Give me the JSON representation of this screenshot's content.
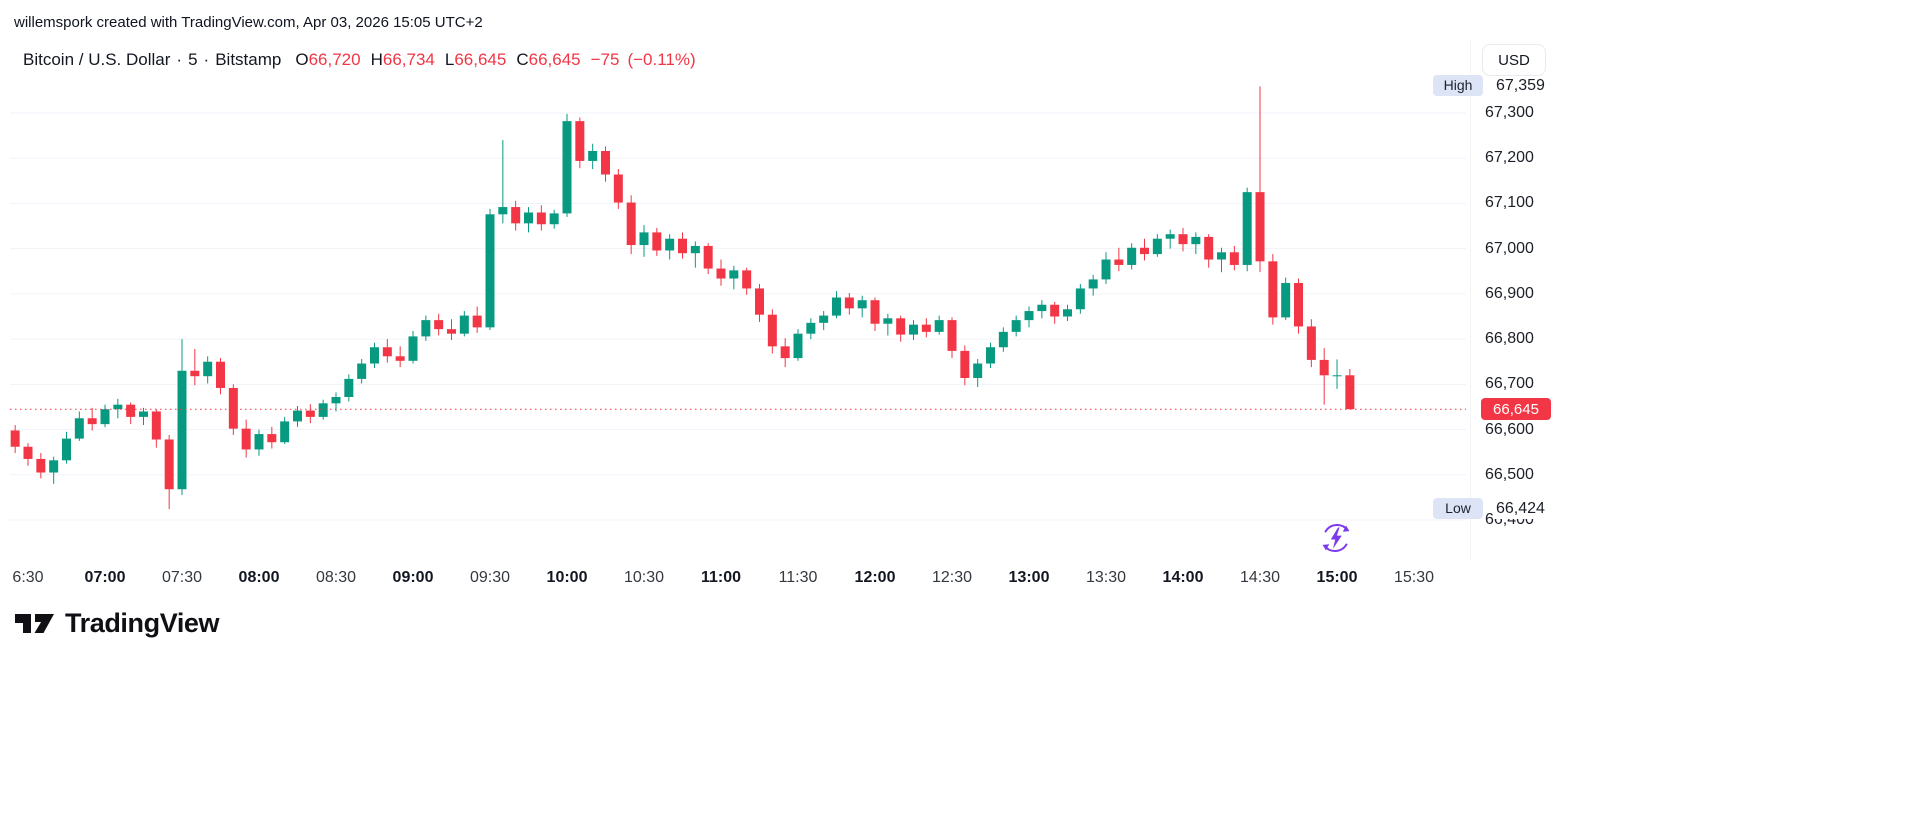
{
  "attribution": "willemspork created with TradingView.com, Apr 03, 2026 15:05 UTC+2",
  "header": {
    "symbol": "Bitcoin / U.S. Dollar",
    "separator": "·",
    "interval": "5",
    "exchange": "Bitstamp",
    "ohlc": {
      "o_label": "O",
      "o": "66,720",
      "h_label": "H",
      "h": "66,734",
      "l_label": "L",
      "l": "66,645",
      "c_label": "C",
      "c": "66,645",
      "change": "−75",
      "change_pct": "(−0.11%)"
    }
  },
  "price_scale": {
    "currency": "USD",
    "high_label": "High",
    "high_value": "67,359",
    "low_label": "Low",
    "low_value": "66,424",
    "last_price": "66,645"
  },
  "footer": {
    "brand": "TradingView"
  },
  "colors": {
    "up": "#089981",
    "down": "#f23645",
    "last_badge": "#f23645",
    "hl_badge_bg": "#dce4f5",
    "flash": "#7c3aed",
    "grid": "#f0f3fa"
  },
  "chart_data": {
    "type": "candlestick",
    "title": "Bitcoin / U.S. Dollar · 5 · Bitstamp",
    "interval_minutes": 5,
    "last_price": 66645,
    "session_high": 67359,
    "session_low": 66424,
    "price_axis": {
      "ticks": [
        67300,
        67200,
        67100,
        67000,
        66900,
        66800,
        66700,
        66600,
        66500,
        66400
      ],
      "ylim": [
        66380,
        67390
      ]
    },
    "time_axis_labels": [
      {
        "text": "6:30",
        "bold": false
      },
      {
        "text": "07:00",
        "bold": true
      },
      {
        "text": "07:30",
        "bold": false
      },
      {
        "text": "08:00",
        "bold": true
      },
      {
        "text": "08:30",
        "bold": false
      },
      {
        "text": "09:00",
        "bold": true
      },
      {
        "text": "09:30",
        "bold": false
      },
      {
        "text": "10:00",
        "bold": true
      },
      {
        "text": "10:30",
        "bold": false
      },
      {
        "text": "11:00",
        "bold": true
      },
      {
        "text": "11:30",
        "bold": false
      },
      {
        "text": "12:00",
        "bold": true
      },
      {
        "text": "12:30",
        "bold": false
      },
      {
        "text": "13:00",
        "bold": true
      },
      {
        "text": "13:30",
        "bold": false
      },
      {
        "text": "14:00",
        "bold": true
      },
      {
        "text": "14:30",
        "bold": false
      },
      {
        "text": "15:00",
        "bold": true
      },
      {
        "text": "15:30",
        "bold": false
      }
    ],
    "candles": [
      [
        "06:25",
        66598,
        66610,
        66548,
        66562
      ],
      [
        "06:30",
        66562,
        66570,
        66520,
        66535
      ],
      [
        "06:35",
        66535,
        66548,
        66492,
        66505
      ],
      [
        "06:40",
        66505,
        66540,
        66480,
        66532
      ],
      [
        "06:45",
        66532,
        66595,
        66525,
        66580
      ],
      [
        "06:50",
        66580,
        66640,
        66575,
        66625
      ],
      [
        "06:55",
        66625,
        66648,
        66598,
        66612
      ],
      [
        "07:00",
        66612,
        66655,
        66605,
        66645
      ],
      [
        "07:05",
        66645,
        66668,
        66625,
        66655
      ],
      [
        "07:10",
        66655,
        66660,
        66612,
        66628
      ],
      [
        "07:15",
        66628,
        66648,
        66610,
        66640
      ],
      [
        "07:20",
        66640,
        66645,
        66560,
        66578
      ],
      [
        "07:25",
        66578,
        66588,
        66424,
        66468
      ],
      [
        "07:30",
        66468,
        66800,
        66455,
        66730
      ],
      [
        "07:35",
        66730,
        66778,
        66698,
        66718
      ],
      [
        "07:40",
        66718,
        66762,
        66702,
        66750
      ],
      [
        "07:45",
        66750,
        66758,
        66678,
        66692
      ],
      [
        "07:50",
        66692,
        66700,
        66588,
        66602
      ],
      [
        "07:55",
        66602,
        66622,
        66538,
        66556
      ],
      [
        "08:00",
        66556,
        66600,
        66542,
        66590
      ],
      [
        "08:05",
        66590,
        66606,
        66558,
        66572
      ],
      [
        "08:10",
        66572,
        66628,
        66568,
        66618
      ],
      [
        "08:15",
        66618,
        66652,
        66606,
        66642
      ],
      [
        "08:20",
        66642,
        66656,
        66614,
        66628
      ],
      [
        "08:25",
        66628,
        66666,
        66622,
        66658
      ],
      [
        "08:30",
        66658,
        66682,
        66640,
        66672
      ],
      [
        "08:35",
        66672,
        66722,
        66662,
        66712
      ],
      [
        "08:40",
        66712,
        66756,
        66702,
        66746
      ],
      [
        "08:45",
        66746,
        66792,
        66736,
        66782
      ],
      [
        "08:50",
        66782,
        66800,
        66748,
        66762
      ],
      [
        "08:55",
        66762,
        66784,
        66738,
        66752
      ],
      [
        "09:00",
        66752,
        66818,
        66746,
        66806
      ],
      [
        "09:05",
        66806,
        66852,
        66796,
        66842
      ],
      [
        "09:10",
        66842,
        66856,
        66808,
        66822
      ],
      [
        "09:15",
        66822,
        66844,
        66798,
        66812
      ],
      [
        "09:20",
        66812,
        66862,
        66806,
        66852
      ],
      [
        "09:25",
        66852,
        66872,
        66814,
        66826
      ],
      [
        "09:30",
        66826,
        67088,
        66820,
        67076
      ],
      [
        "09:35",
        67076,
        67240,
        67056,
        67092
      ],
      [
        "09:40",
        67092,
        67106,
        67040,
        67056
      ],
      [
        "09:45",
        67056,
        67092,
        67036,
        67080
      ],
      [
        "09:50",
        67080,
        67096,
        67040,
        67054
      ],
      [
        "09:55",
        67054,
        67086,
        67044,
        67078
      ],
      [
        "10:00",
        67078,
        67298,
        67070,
        67282
      ],
      [
        "10:05",
        67282,
        67290,
        67178,
        67194
      ],
      [
        "10:10",
        67194,
        67232,
        67176,
        67216
      ],
      [
        "10:15",
        67216,
        67226,
        67148,
        67164
      ],
      [
        "10:20",
        67164,
        67176,
        67088,
        67102
      ],
      [
        "10:25",
        67102,
        67118,
        66988,
        67008
      ],
      [
        "10:30",
        67008,
        67052,
        66982,
        67036
      ],
      [
        "10:35",
        67036,
        67046,
        66984,
        66996
      ],
      [
        "10:40",
        66996,
        67032,
        66976,
        67022
      ],
      [
        "10:45",
        67022,
        67036,
        66978,
        66990
      ],
      [
        "10:50",
        66990,
        67016,
        66958,
        67006
      ],
      [
        "10:55",
        67006,
        67012,
        66944,
        66956
      ],
      [
        "11:00",
        66956,
        66976,
        66918,
        66934
      ],
      [
        "11:05",
        66934,
        66962,
        66910,
        66952
      ],
      [
        "11:10",
        66952,
        66958,
        66898,
        66912
      ],
      [
        "11:15",
        66912,
        66922,
        66838,
        66854
      ],
      [
        "11:20",
        66854,
        66866,
        66768,
        66784
      ],
      [
        "11:25",
        66784,
        66802,
        66738,
        66758
      ],
      [
        "11:30",
        66758,
        66822,
        66752,
        66812
      ],
      [
        "11:35",
        66812,
        66846,
        66800,
        66836
      ],
      [
        "11:40",
        66836,
        66862,
        66820,
        66852
      ],
      [
        "11:45",
        66852,
        66906,
        66846,
        66892
      ],
      [
        "11:50",
        66892,
        66902,
        66854,
        66868
      ],
      [
        "11:55",
        66868,
        66896,
        66848,
        66886
      ],
      [
        "12:00",
        66886,
        66892,
        66818,
        66834
      ],
      [
        "12:05",
        66834,
        66856,
        66808,
        66846
      ],
      [
        "12:10",
        66846,
        66852,
        66794,
        66810
      ],
      [
        "12:15",
        66810,
        66842,
        66798,
        66832
      ],
      [
        "12:20",
        66832,
        66846,
        66804,
        66816
      ],
      [
        "12:25",
        66816,
        66852,
        66810,
        66842
      ],
      [
        "12:30",
        66842,
        66848,
        66758,
        66774
      ],
      [
        "12:35",
        66774,
        66786,
        66698,
        66714
      ],
      [
        "12:40",
        66714,
        66756,
        66694,
        66746
      ],
      [
        "12:45",
        66746,
        66792,
        66736,
        66782
      ],
      [
        "12:50",
        66782,
        66826,
        66772,
        66816
      ],
      [
        "12:55",
        66816,
        66852,
        66806,
        66842
      ],
      [
        "13:00",
        66842,
        66872,
        66826,
        66862
      ],
      [
        "13:05",
        66862,
        66886,
        66846,
        66876
      ],
      [
        "13:10",
        66876,
        66882,
        66834,
        66850
      ],
      [
        "13:15",
        66850,
        66876,
        66840,
        66866
      ],
      [
        "13:20",
        66866,
        66922,
        66856,
        66912
      ],
      [
        "13:25",
        66912,
        66942,
        66896,
        66932
      ],
      [
        "13:30",
        66932,
        66992,
        66922,
        66976
      ],
      [
        "13:35",
        66976,
        67002,
        66950,
        66964
      ],
      [
        "13:40",
        66964,
        67012,
        66954,
        67002
      ],
      [
        "13:45",
        67002,
        67022,
        66974,
        66988
      ],
      [
        "13:50",
        66988,
        67032,
        66982,
        67022
      ],
      [
        "13:55",
        67022,
        67042,
        67000,
        67032
      ],
      [
        "14:00",
        67032,
        67046,
        66994,
        67010
      ],
      [
        "14:05",
        67010,
        67036,
        66988,
        67026
      ],
      [
        "14:10",
        67026,
        67032,
        66958,
        66976
      ],
      [
        "14:15",
        66976,
        67002,
        66948,
        66992
      ],
      [
        "14:20",
        66992,
        67006,
        66952,
        66964
      ],
      [
        "14:25",
        66964,
        67135,
        66950,
        67125
      ],
      [
        "14:30",
        67125,
        67359,
        66948,
        66972
      ],
      [
        "14:35",
        66972,
        66988,
        66832,
        66848
      ],
      [
        "14:40",
        66848,
        66936,
        66842,
        66924
      ],
      [
        "14:45",
        66924,
        66934,
        66812,
        66828
      ],
      [
        "14:50",
        66828,
        66844,
        66738,
        66754
      ],
      [
        "14:55",
        66754,
        66780,
        66655,
        66720
      ],
      [
        "15:00",
        66720,
        66755,
        66690,
        66720
      ],
      [
        "15:05",
        66720,
        66734,
        66645,
        66645
      ]
    ]
  }
}
